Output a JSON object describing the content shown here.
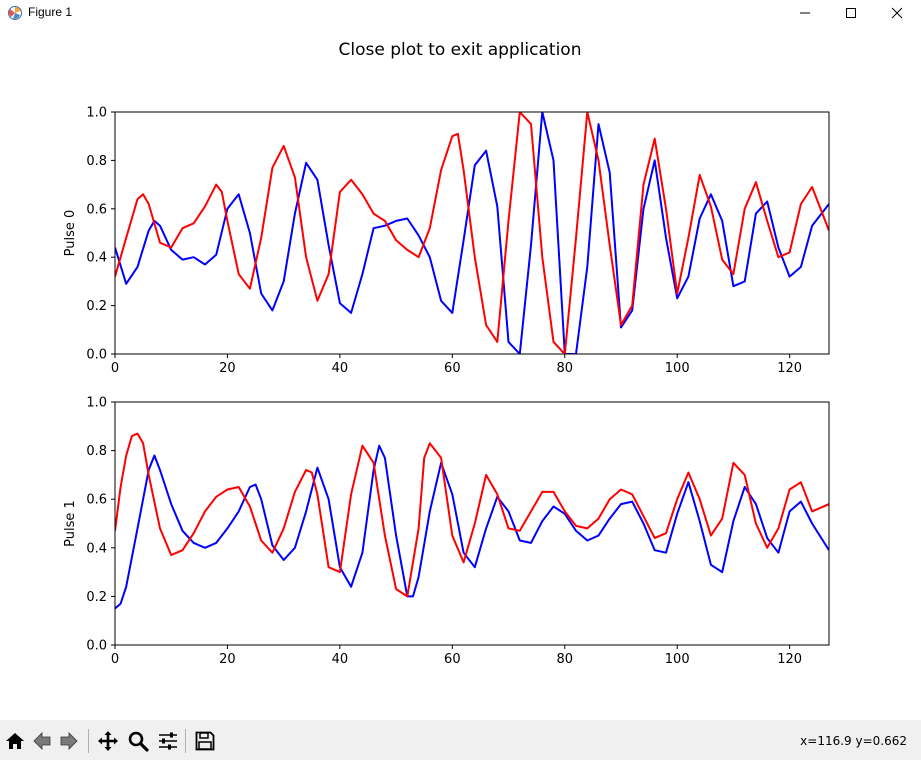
{
  "window": {
    "title": "Figure 1",
    "icon": "matplotlib-figure-icon",
    "controls": [
      "minimize-icon",
      "maximize-icon",
      "close-icon"
    ]
  },
  "figure": {
    "suptitle": "Close plot to exit application"
  },
  "colors": {
    "series_blue": "#0000ff",
    "series_red": "#ff0000",
    "axes_frame": "#000000",
    "toolbar_bg": "#f0f0f0"
  },
  "toolbar": {
    "tools": [
      {
        "name": "home-icon"
      },
      {
        "name": "back-icon"
      },
      {
        "name": "forward-icon"
      },
      {
        "name": "pan-icon"
      },
      {
        "name": "zoom-icon"
      },
      {
        "name": "configure-subplots-icon"
      },
      {
        "name": "save-icon"
      }
    ],
    "coords": "x=116.9 y=0.662"
  },
  "chart_data": [
    {
      "type": "line",
      "ylabel": "Pulse 0",
      "xlim": [
        0,
        127
      ],
      "ylim": [
        0.0,
        1.0
      ],
      "xticks": [
        "0",
        "20",
        "40",
        "60",
        "80",
        "100",
        "120"
      ],
      "yticks": [
        "0.0",
        "0.2",
        "0.4",
        "0.6",
        "0.8",
        "1.0"
      ],
      "grid": false,
      "series": [
        {
          "color": "#0000ff",
          "x": [
            0,
            2,
            4,
            6,
            7,
            8,
            10,
            12,
            14,
            16,
            18,
            20,
            22,
            24,
            26,
            28,
            30,
            32,
            34,
            36,
            38,
            40,
            42,
            44,
            46,
            48,
            50,
            52,
            54,
            56,
            58,
            60,
            62,
            64,
            66,
            68,
            70,
            72,
            74,
            76,
            78,
            80,
            82,
            84,
            86,
            88,
            90,
            92,
            94,
            96,
            98,
            100,
            102,
            104,
            106,
            108,
            110,
            112,
            114,
            116,
            118,
            120,
            122,
            124,
            127
          ],
          "y": [
            0.44,
            0.29,
            0.36,
            0.51,
            0.55,
            0.53,
            0.43,
            0.39,
            0.4,
            0.37,
            0.41,
            0.6,
            0.66,
            0.5,
            0.25,
            0.18,
            0.3,
            0.58,
            0.79,
            0.72,
            0.45,
            0.21,
            0.17,
            0.33,
            0.52,
            0.53,
            0.55,
            0.56,
            0.49,
            0.4,
            0.22,
            0.17,
            0.47,
            0.78,
            0.84,
            0.61,
            0.05,
            0.0,
            0.45,
            1.0,
            0.8,
            0.0,
            0.0,
            0.36,
            0.95,
            0.75,
            0.11,
            0.18,
            0.6,
            0.8,
            0.48,
            0.23,
            0.32,
            0.56,
            0.66,
            0.55,
            0.28,
            0.3,
            0.58,
            0.63,
            0.44,
            0.32,
            0.36,
            0.53,
            0.62
          ]
        },
        {
          "color": "#ff0000",
          "x": [
            0,
            2,
            4,
            5,
            6,
            8,
            10,
            12,
            14,
            16,
            18,
            19,
            20,
            22,
            24,
            26,
            28,
            30,
            32,
            34,
            36,
            38,
            40,
            42,
            44,
            46,
            48,
            50,
            52,
            54,
            56,
            58,
            60,
            61,
            62,
            64,
            66,
            68,
            70,
            72,
            74,
            76,
            78,
            80,
            82,
            84,
            86,
            88,
            90,
            92,
            94,
            96,
            98,
            100,
            102,
            104,
            106,
            108,
            110,
            112,
            114,
            116,
            118,
            120,
            122,
            124,
            127
          ],
          "y": [
            0.32,
            0.48,
            0.64,
            0.66,
            0.62,
            0.46,
            0.44,
            0.52,
            0.54,
            0.61,
            0.7,
            0.67,
            0.55,
            0.33,
            0.27,
            0.48,
            0.77,
            0.86,
            0.73,
            0.4,
            0.22,
            0.33,
            0.67,
            0.72,
            0.66,
            0.58,
            0.55,
            0.47,
            0.43,
            0.4,
            0.52,
            0.76,
            0.9,
            0.91,
            0.76,
            0.4,
            0.12,
            0.05,
            0.55,
            1.0,
            0.95,
            0.4,
            0.05,
            0.0,
            0.48,
            1.0,
            0.8,
            0.45,
            0.12,
            0.2,
            0.7,
            0.89,
            0.6,
            0.25,
            0.48,
            0.74,
            0.61,
            0.39,
            0.33,
            0.6,
            0.71,
            0.55,
            0.4,
            0.42,
            0.62,
            0.69,
            0.51
          ]
        }
      ]
    },
    {
      "type": "line",
      "ylabel": "Pulse 1",
      "xlim": [
        0,
        127
      ],
      "ylim": [
        0.0,
        1.0
      ],
      "xticks": [
        "0",
        "20",
        "40",
        "60",
        "80",
        "100",
        "120"
      ],
      "yticks": [
        "0.0",
        "0.2",
        "0.4",
        "0.6",
        "0.8",
        "1.0"
      ],
      "grid": false,
      "series": [
        {
          "color": "#0000ff",
          "x": [
            0,
            1,
            2,
            4,
            6,
            7,
            8,
            10,
            12,
            14,
            16,
            18,
            20,
            22,
            24,
            25,
            26,
            28,
            30,
            32,
            34,
            36,
            38,
            40,
            42,
            44,
            46,
            47,
            48,
            50,
            52,
            53,
            54,
            56,
            58,
            60,
            62,
            64,
            66,
            68,
            70,
            72,
            74,
            76,
            78,
            80,
            82,
            84,
            86,
            88,
            90,
            92,
            94,
            96,
            98,
            100,
            102,
            104,
            106,
            108,
            110,
            112,
            114,
            116,
            118,
            120,
            122,
            124,
            127
          ],
          "y": [
            0.15,
            0.17,
            0.24,
            0.48,
            0.72,
            0.78,
            0.72,
            0.58,
            0.47,
            0.42,
            0.4,
            0.42,
            0.48,
            0.55,
            0.65,
            0.66,
            0.6,
            0.41,
            0.35,
            0.4,
            0.55,
            0.73,
            0.6,
            0.32,
            0.24,
            0.38,
            0.72,
            0.82,
            0.77,
            0.45,
            0.2,
            0.2,
            0.28,
            0.55,
            0.75,
            0.62,
            0.38,
            0.32,
            0.48,
            0.61,
            0.55,
            0.43,
            0.42,
            0.51,
            0.57,
            0.54,
            0.47,
            0.43,
            0.45,
            0.52,
            0.58,
            0.59,
            0.5,
            0.39,
            0.38,
            0.54,
            0.67,
            0.51,
            0.33,
            0.3,
            0.51,
            0.65,
            0.58,
            0.44,
            0.38,
            0.55,
            0.59,
            0.5,
            0.39
          ]
        },
        {
          "color": "#ff0000",
          "x": [
            0,
            1,
            2,
            3,
            4,
            5,
            6,
            8,
            10,
            12,
            14,
            16,
            18,
            20,
            22,
            24,
            26,
            28,
            30,
            32,
            34,
            35,
            36,
            38,
            40,
            42,
            44,
            46,
            48,
            50,
            52,
            54,
            55,
            56,
            58,
            60,
            62,
            64,
            66,
            68,
            70,
            72,
            74,
            76,
            78,
            80,
            82,
            84,
            86,
            88,
            90,
            92,
            94,
            96,
            98,
            100,
            102,
            104,
            106,
            108,
            110,
            112,
            114,
            116,
            118,
            120,
            122,
            124,
            127
          ],
          "y": [
            0.47,
            0.65,
            0.78,
            0.86,
            0.87,
            0.83,
            0.7,
            0.48,
            0.37,
            0.39,
            0.46,
            0.55,
            0.61,
            0.64,
            0.65,
            0.57,
            0.43,
            0.38,
            0.48,
            0.63,
            0.72,
            0.71,
            0.62,
            0.32,
            0.3,
            0.62,
            0.82,
            0.75,
            0.45,
            0.23,
            0.2,
            0.48,
            0.77,
            0.83,
            0.77,
            0.45,
            0.34,
            0.5,
            0.7,
            0.62,
            0.48,
            0.47,
            0.55,
            0.63,
            0.63,
            0.55,
            0.49,
            0.48,
            0.52,
            0.6,
            0.64,
            0.62,
            0.53,
            0.44,
            0.46,
            0.6,
            0.71,
            0.6,
            0.45,
            0.52,
            0.75,
            0.7,
            0.5,
            0.4,
            0.48,
            0.64,
            0.67,
            0.55,
            0.58
          ]
        }
      ]
    }
  ]
}
